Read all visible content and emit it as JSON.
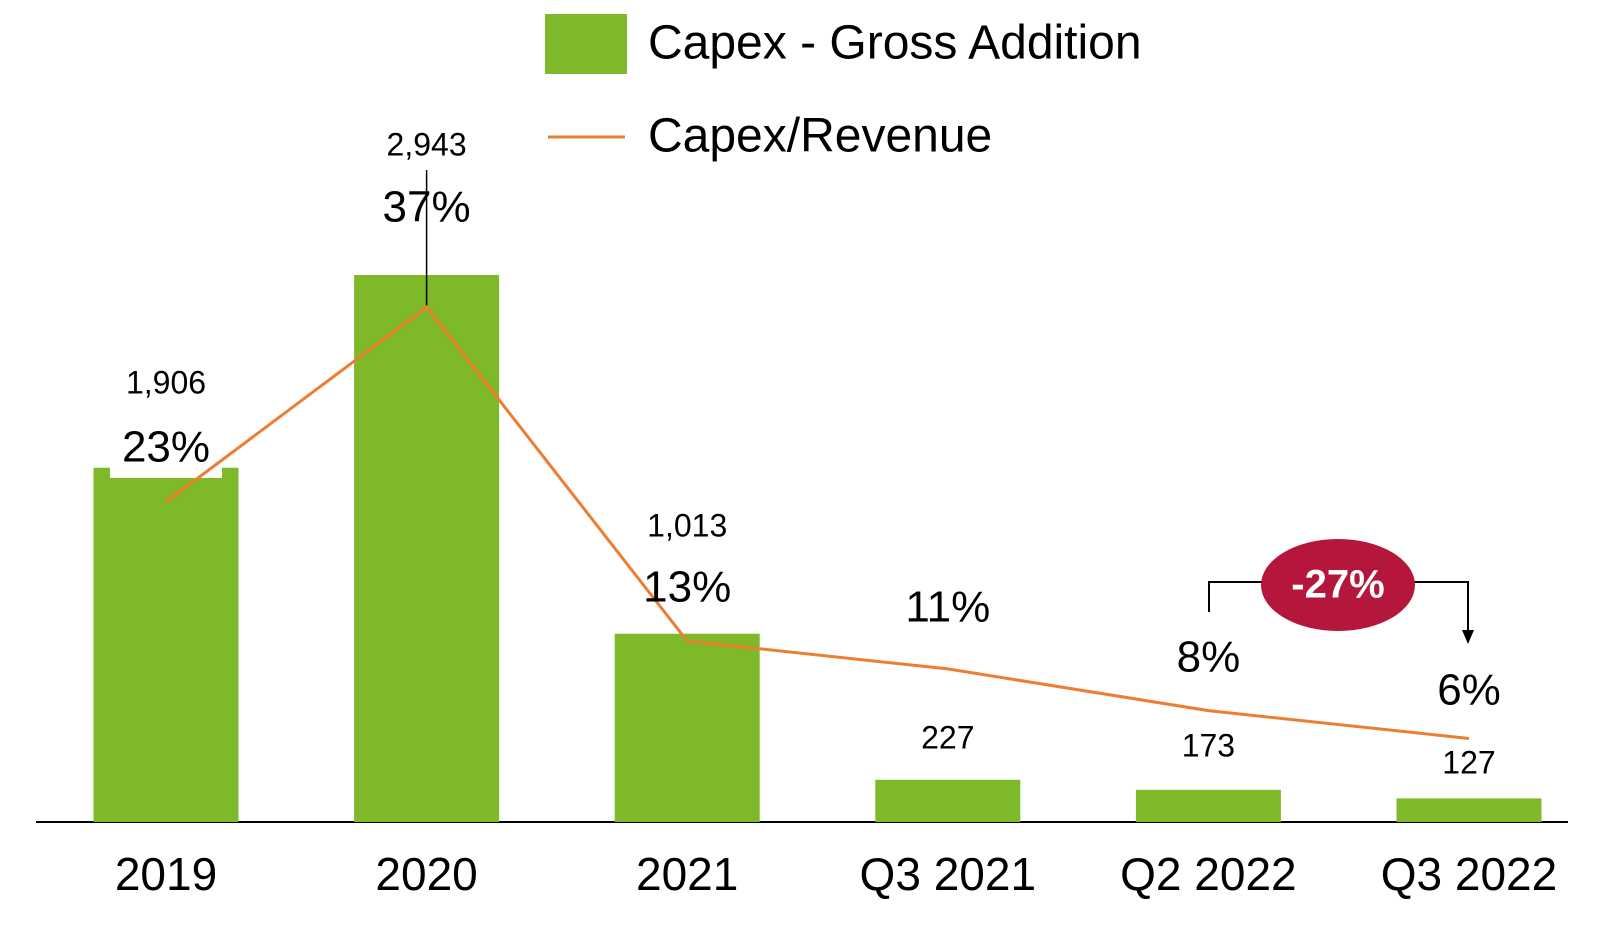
{
  "chart_data": {
    "type": "bar",
    "categories": [
      "2019",
      "2020",
      "2021",
      "Q3 2021",
      "Q2 2022",
      "Q3 2022"
    ],
    "series": [
      {
        "name": "Capex - Gross Addition",
        "type": "bar",
        "color": "#7db928",
        "values": [
          1906,
          2943,
          1013,
          227,
          173,
          127
        ],
        "value_labels": [
          "1,906",
          "2,943",
          "1,013",
          "227",
          "173",
          "127"
        ]
      },
      {
        "name": "Capex/Revenue",
        "type": "line",
        "axis": "y2",
        "color": "#ed7d31",
        "values": [
          23,
          37,
          13,
          11,
          8,
          6
        ],
        "value_labels": [
          "23%",
          "37%",
          "13%",
          "11%",
          "8%",
          "6%"
        ]
      }
    ],
    "annotations": [
      {
        "text": "-27%"
      }
    ]
  }
}
